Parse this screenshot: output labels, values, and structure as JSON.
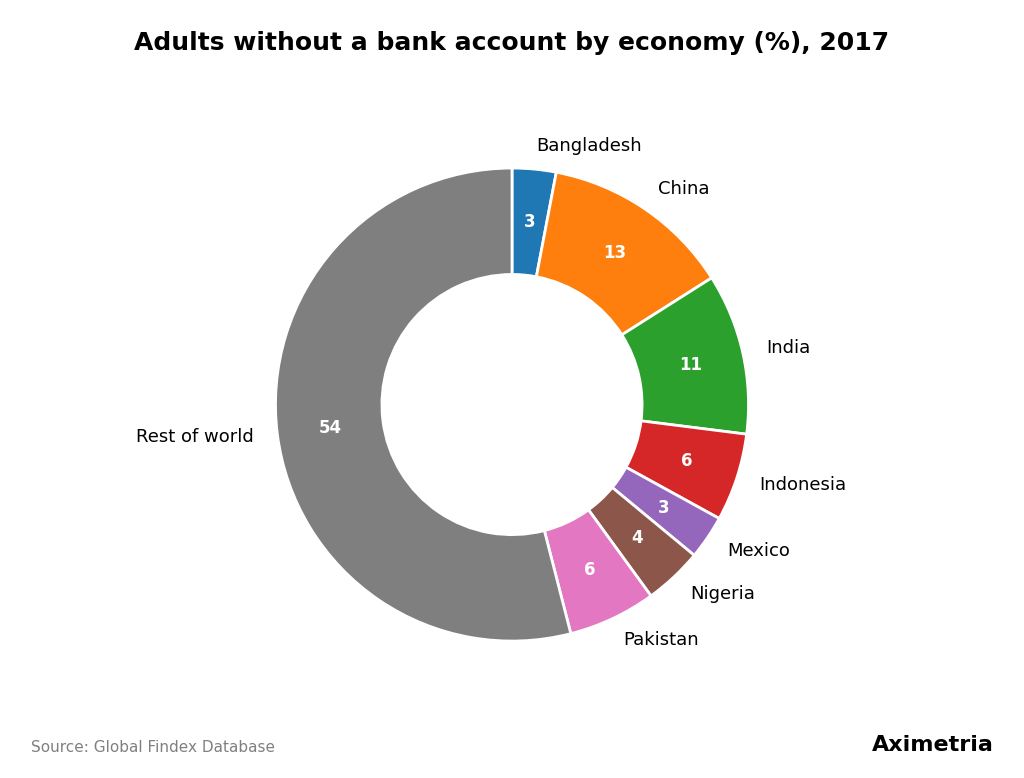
{
  "chart_data": {
    "type": "pie",
    "title": "Adults without a bank account by economy (%), 2017",
    "categories": [
      "Bangladesh",
      "China",
      "India",
      "Indonesia",
      "Mexico",
      "Nigeria",
      "Pakistan",
      "Rest of world"
    ],
    "values": [
      3,
      13,
      11,
      6,
      3,
      4,
      6,
      54
    ],
    "data_labels": true,
    "annotations": [
      "Source: Global Findex Database",
      "Aximetria"
    ]
  }
}
